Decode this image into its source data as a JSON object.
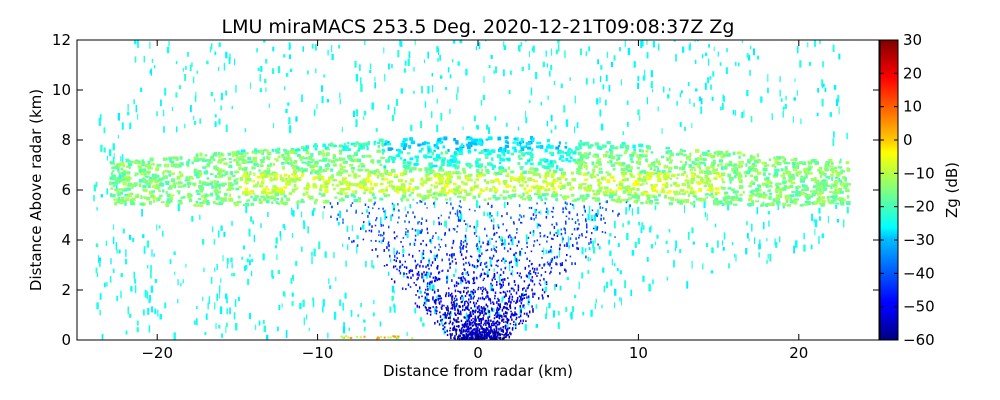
{
  "chart_data": {
    "type": "heatmap",
    "title": "LMU miraMACS 253.5 Deg. 2020-12-21T09:08:37Z  Zg",
    "xlabel": "Distance from radar (km)",
    "ylabel": "Distance Above radar  (km)",
    "xlim": [
      -25,
      25
    ],
    "ylim": [
      0,
      12
    ],
    "xticks": [
      -20,
      -10,
      0,
      10,
      20
    ],
    "xtick_labels": [
      "−20",
      "−10",
      "0",
      "10",
      "20"
    ],
    "yticks": [
      0,
      2,
      4,
      6,
      8,
      10,
      12
    ],
    "ytick_labels": [
      "0",
      "2",
      "4",
      "6",
      "8",
      "10",
      "12"
    ],
    "colorbar": {
      "label": "Zg (dB)",
      "range": [
        -60,
        30
      ],
      "ticks": [
        30,
        20,
        10,
        0,
        -10,
        -20,
        -30,
        -40,
        -50,
        -60
      ],
      "tick_labels": [
        "30",
        "20",
        "10",
        "0",
        "−10",
        "−20",
        "−30",
        "−40",
        "−50",
        "−60"
      ],
      "colormap": "jet"
    },
    "features": [
      {
        "name": "cloud layer",
        "z_bottom_km": 5.5,
        "z_top_km": 8.0,
        "x_extent_km": [
          -23,
          23
        ],
        "dbz_range": [
          -20,
          -5
        ]
      },
      {
        "name": "upper cirrus wisps",
        "z_range_km": [
          8,
          12
        ],
        "dbz": -25
      },
      {
        "name": "low noise near radar",
        "z_range_km": [
          0,
          4
        ],
        "dbz_range": [
          -55,
          -35
        ]
      },
      {
        "name": "clutter at ground",
        "x_range_km": [
          -8,
          -5
        ],
        "z_km": 0,
        "dbz": 5
      }
    ]
  }
}
